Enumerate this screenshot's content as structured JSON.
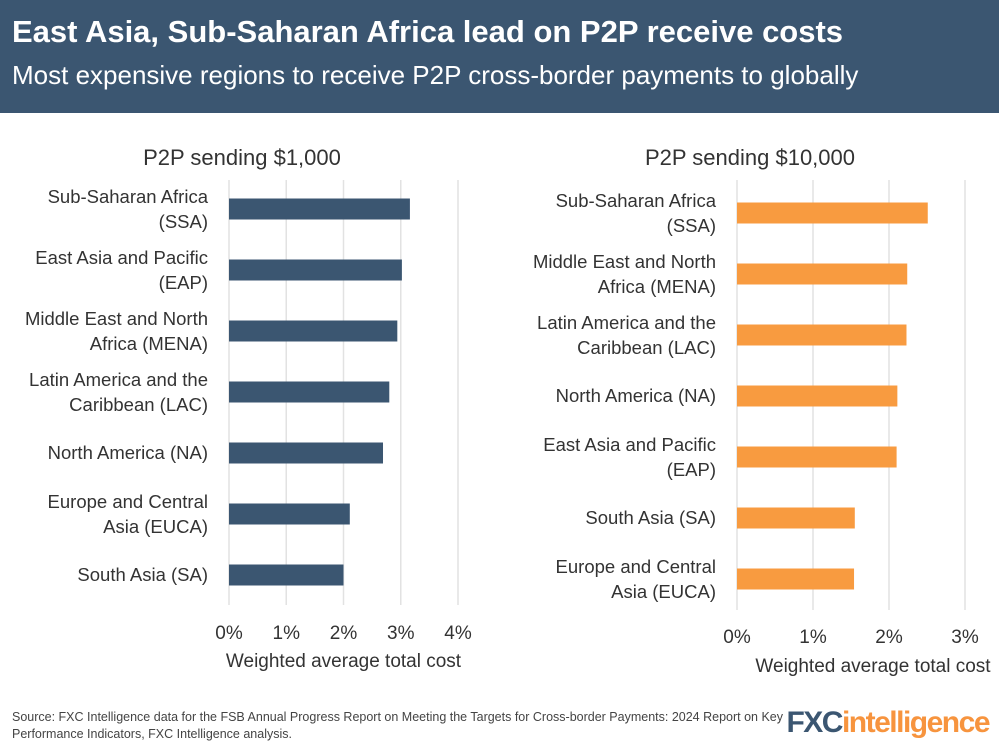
{
  "header": {
    "title": "East Asia, Sub-Saharan Africa lead on P2P receive costs",
    "subtitle": "Most expensive regions to receive P2P cross-border payments to globally"
  },
  "footer": {
    "source": "Source: FXC Intelligence data for the FSB Annual Progress Report on Meeting the Targets for Cross-border Payments: 2024 Report on Key Performance Indicators, FXC Intelligence analysis.",
    "logo": "FXCintelligence"
  },
  "chart_data": [
    {
      "type": "bar",
      "orientation": "horizontal",
      "title": "P2P sending $1,000",
      "xlabel": "Weighted average total cost",
      "xlim": [
        0,
        4
      ],
      "xticks": [
        "0%",
        "1%",
        "2%",
        "3%",
        "4%"
      ],
      "grid": true,
      "color": "#3b5671",
      "categories": [
        [
          "Sub-Saharan Africa",
          "(SSA)"
        ],
        [
          "East Asia and Pacific",
          "(EAP)"
        ],
        [
          "Middle East and North",
          "Africa (MENA)"
        ],
        [
          "Latin America and the",
          "Caribbean (LAC)"
        ],
        [
          "North America (NA)"
        ],
        [
          "Europe and Central",
          "Asia (EUCA)"
        ],
        [
          "South Asia (SA)"
        ]
      ],
      "values": [
        3.16,
        3.02,
        2.94,
        2.8,
        2.69,
        2.11,
        2.0
      ]
    },
    {
      "type": "bar",
      "orientation": "horizontal",
      "title": "P2P sending $10,000",
      "xlabel": "Weighted average total cost",
      "xlim": [
        0,
        3
      ],
      "xticks": [
        "0%",
        "1%",
        "2%",
        "3%"
      ],
      "grid": true,
      "color": "#f89b40",
      "categories": [
        [
          "Sub-Saharan Africa",
          "(SSA)"
        ],
        [
          "Middle East and North",
          "Africa (MENA)"
        ],
        [
          "Latin America and the",
          "Caribbean (LAC)"
        ],
        [
          "North America (NA)"
        ],
        [
          "East Asia and Pacific",
          "(EAP)"
        ],
        [
          "South Asia (SA)"
        ],
        [
          "Europe and Central",
          "Asia (EUCA)"
        ]
      ],
      "values": [
        2.51,
        2.24,
        2.23,
        2.11,
        2.1,
        1.55,
        1.54
      ]
    }
  ]
}
